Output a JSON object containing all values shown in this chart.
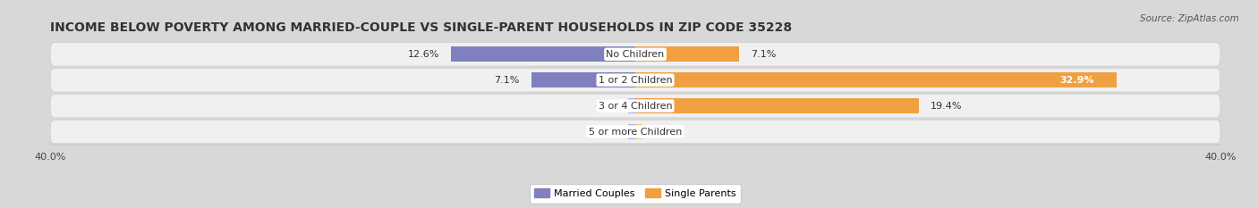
{
  "title": "INCOME BELOW POVERTY AMONG MARRIED-COUPLE VS SINGLE-PARENT HOUSEHOLDS IN ZIP CODE 35228",
  "source": "Source: ZipAtlas.com",
  "categories": [
    "No Children",
    "1 or 2 Children",
    "3 or 4 Children",
    "5 or more Children"
  ],
  "married_values": [
    12.6,
    7.1,
    0.0,
    0.0
  ],
  "single_values": [
    7.1,
    32.9,
    19.4,
    0.0
  ],
  "married_color": "#8080c0",
  "married_color_light": "#b0b0e0",
  "single_color": "#f0a040",
  "single_color_light": "#f5c888",
  "bg_color": "#d8d8d8",
  "row_color": "#f0f0f0",
  "xlim": 40.0,
  "title_fontsize": 10,
  "label_fontsize": 8,
  "category_fontsize": 8,
  "legend_fontsize": 8,
  "axis_label_fontsize": 8,
  "bar_height": 0.6
}
